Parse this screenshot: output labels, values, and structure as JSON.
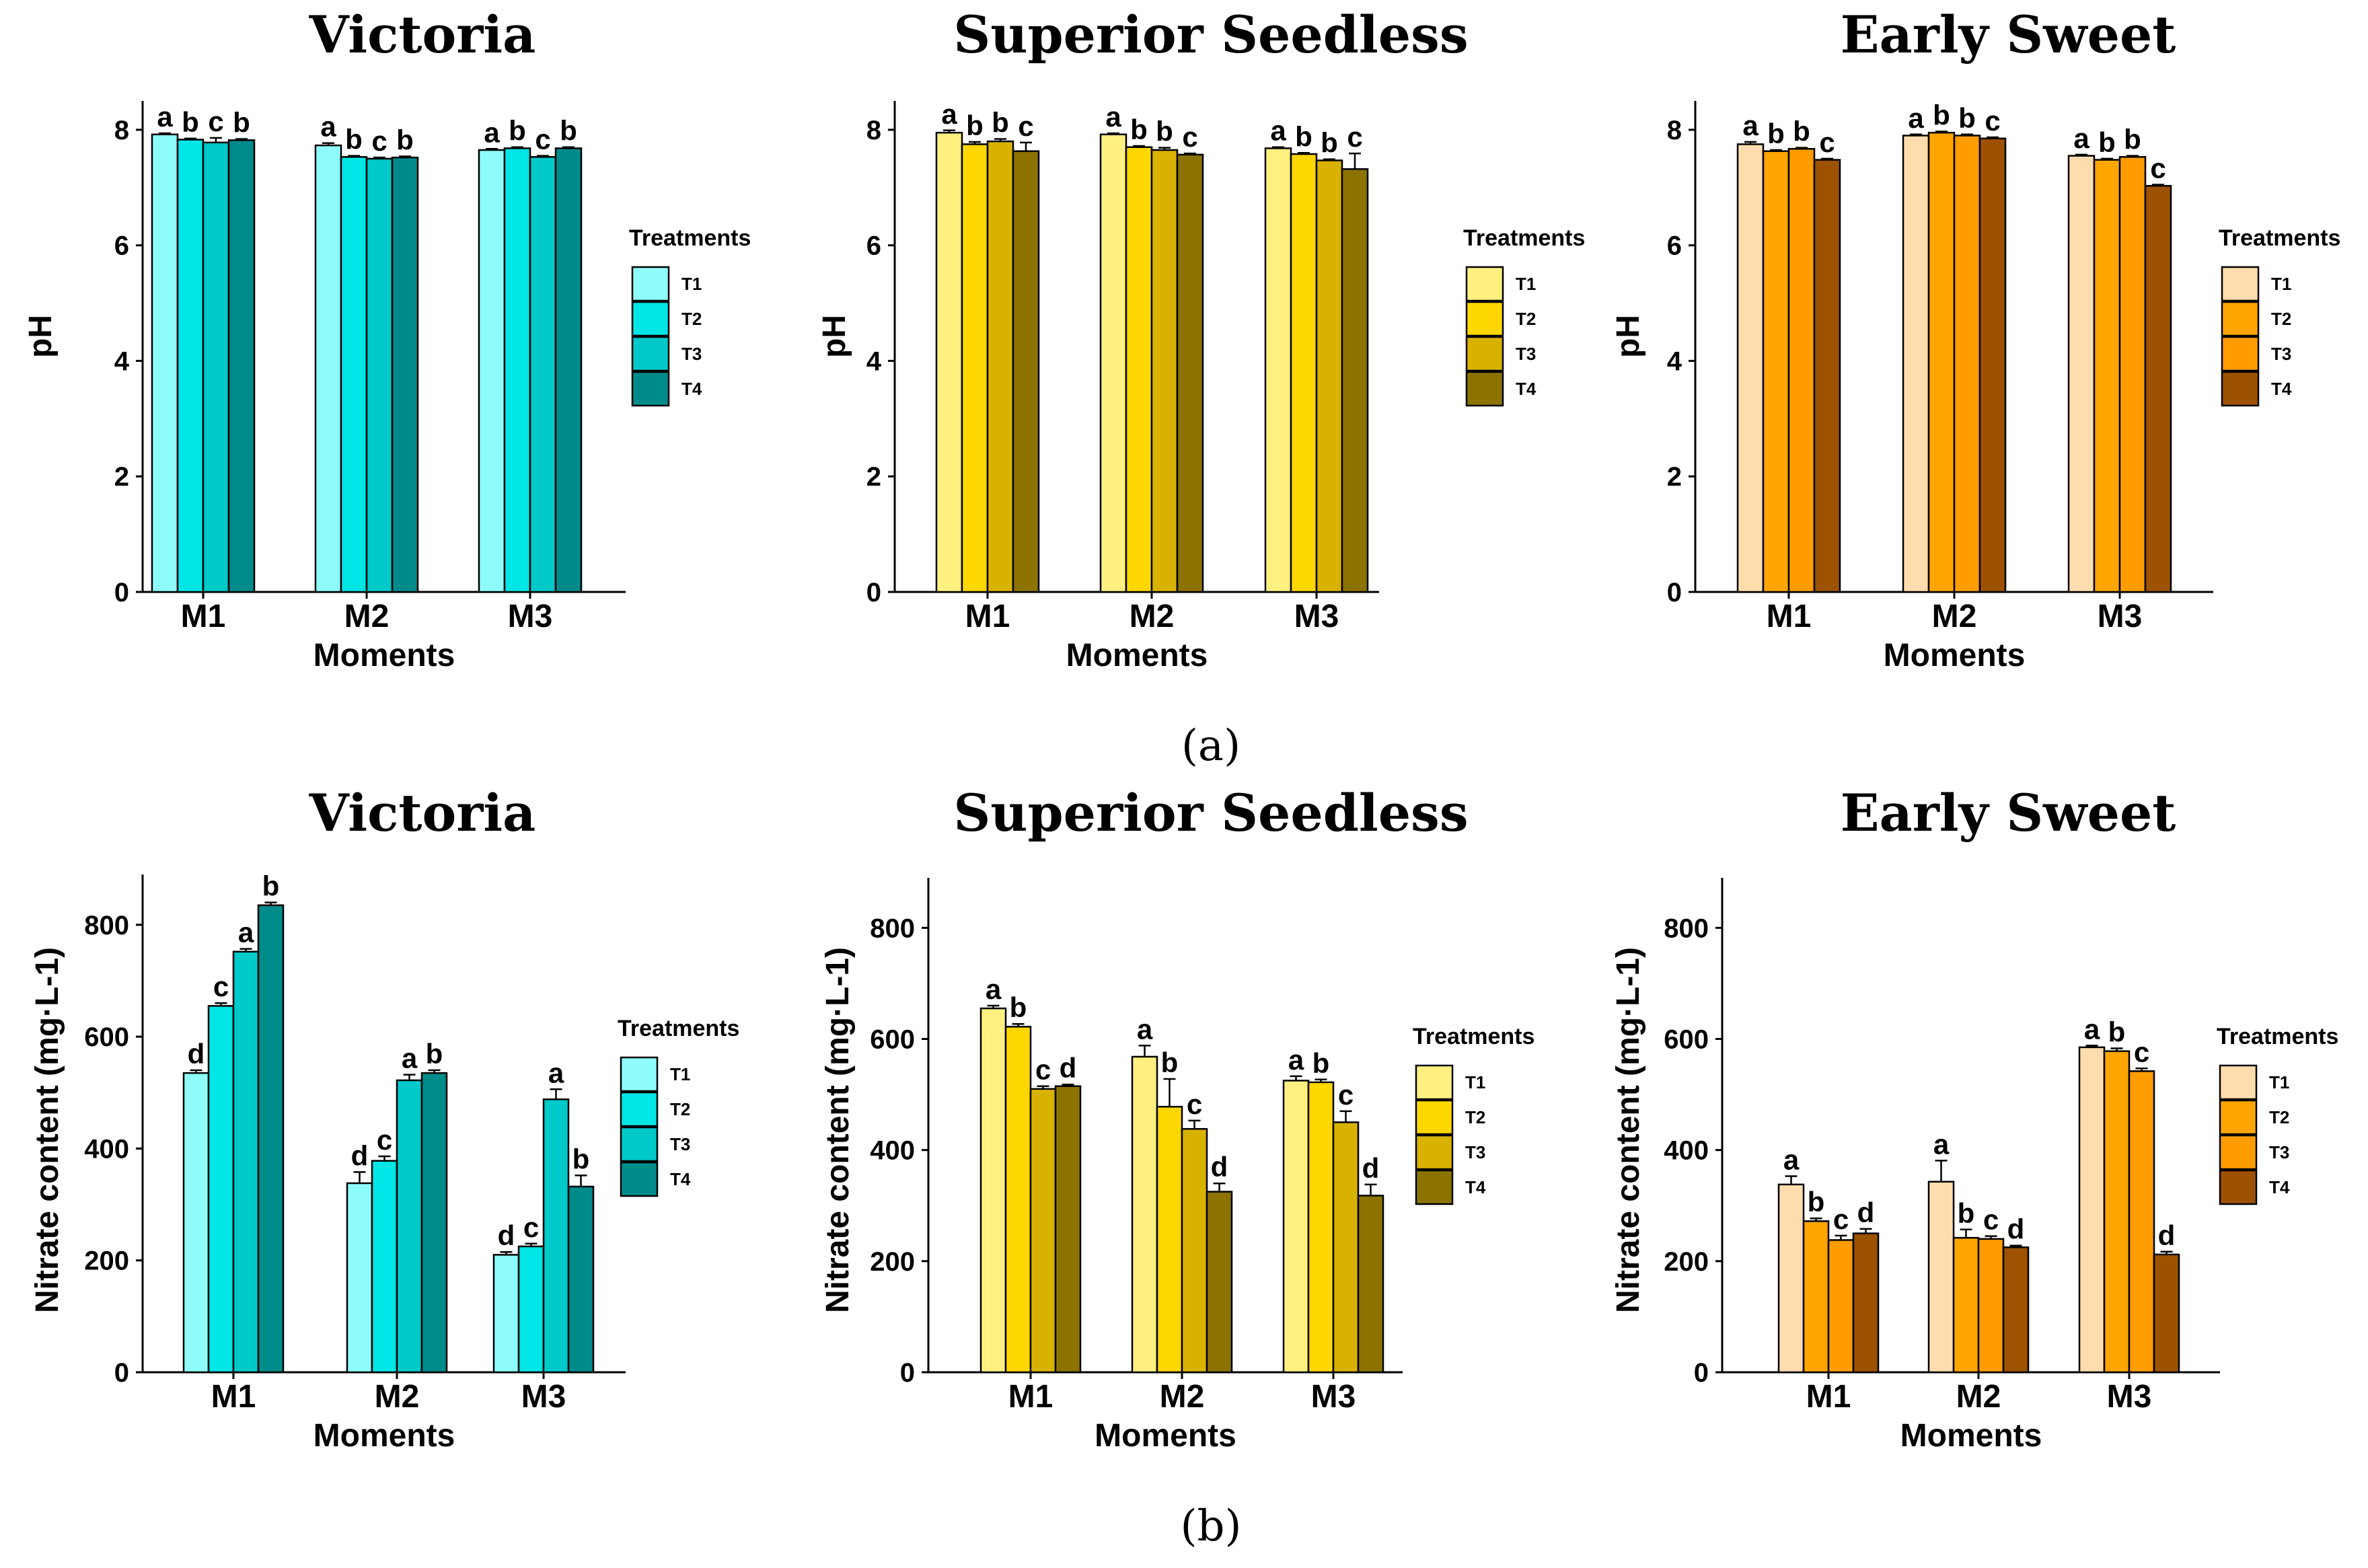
{
  "figure": {
    "caption_a": "(a)",
    "caption_b": "(b)"
  },
  "chart_data": [
    {
      "id": "ph-victoria",
      "row": "a",
      "type": "bar",
      "title": "Victoria",
      "xlabel": "Moments",
      "ylabel": "pH",
      "categories": [
        "M1",
        "M2",
        "M3"
      ],
      "ylim": [
        0,
        8.5
      ],
      "yticks": [
        0,
        2,
        4,
        6,
        8
      ],
      "legend_title": "Treatments",
      "colors": [
        "#8ffcfc",
        "#00e5e5",
        "#00c9c9",
        "#008b8b"
      ],
      "series": [
        {
          "name": "T1",
          "values": [
            7.92,
            7.73,
            7.65
          ],
          "errors": [
            0.02,
            0.04,
            0.02
          ],
          "letters": [
            "a",
            "a",
            "a"
          ]
        },
        {
          "name": "T2",
          "values": [
            7.83,
            7.53,
            7.68
          ],
          "errors": [
            0.02,
            0.02,
            0.02
          ],
          "letters": [
            "b",
            "b",
            "b"
          ]
        },
        {
          "name": "T3",
          "values": [
            7.78,
            7.5,
            7.53
          ],
          "errors": [
            0.08,
            0.02,
            0.02
          ],
          "letters": [
            "c",
            "c",
            "c"
          ]
        },
        {
          "name": "T4",
          "values": [
            7.82,
            7.52,
            7.68
          ],
          "errors": [
            0.02,
            0.02,
            0.02
          ],
          "letters": [
            "b",
            "b",
            "b"
          ]
        }
      ]
    },
    {
      "id": "ph-superior",
      "row": "a",
      "type": "bar",
      "title": "Superior Seedless",
      "xlabel": "Moments",
      "ylabel": "pH",
      "categories": [
        "M1",
        "M2",
        "M3"
      ],
      "ylim": [
        0,
        8.5
      ],
      "yticks": [
        0,
        2,
        4,
        6,
        8
      ],
      "legend_title": "Treatments",
      "colors": [
        "#fff080",
        "#ffd700",
        "#d9b200",
        "#8c7300"
      ],
      "series": [
        {
          "name": "T1",
          "values": [
            7.95,
            7.92,
            7.68
          ],
          "errors": [
            0.04,
            0.02,
            0.02
          ],
          "letters": [
            "a",
            "a",
            "a"
          ]
        },
        {
          "name": "T2",
          "values": [
            7.75,
            7.7,
            7.58
          ],
          "errors": [
            0.04,
            0.02,
            0.02
          ],
          "letters": [
            "b",
            "b",
            "b"
          ]
        },
        {
          "name": "T3",
          "values": [
            7.8,
            7.65,
            7.47
          ],
          "errors": [
            0.04,
            0.04,
            0.02
          ],
          "letters": [
            "b",
            "b",
            "b"
          ]
        },
        {
          "name": "T4",
          "values": [
            7.63,
            7.57,
            7.32
          ],
          "errors": [
            0.15,
            0.02,
            0.27
          ],
          "letters": [
            "c",
            "c",
            "c"
          ]
        }
      ]
    },
    {
      "id": "ph-earlysweet",
      "row": "a",
      "type": "bar",
      "title": "Early Sweet",
      "xlabel": "Moments",
      "ylabel": "pH",
      "categories": [
        "M1",
        "M2",
        "M3"
      ],
      "ylim": [
        0,
        8.5
      ],
      "yticks": [
        0,
        2,
        4,
        6,
        8
      ],
      "legend_title": "Treatments",
      "colors": [
        "#ffdcae",
        "#ffa500",
        "#ff9c00",
        "#9c5200"
      ],
      "series": [
        {
          "name": "T1",
          "values": [
            7.75,
            7.9,
            7.55
          ],
          "errors": [
            0.04,
            0.02,
            0.02
          ],
          "letters": [
            "a",
            "a",
            "a"
          ]
        },
        {
          "name": "T2",
          "values": [
            7.63,
            7.95,
            7.48
          ],
          "errors": [
            0.02,
            0.02,
            0.02
          ],
          "letters": [
            "b",
            "b",
            "b"
          ]
        },
        {
          "name": "T3",
          "values": [
            7.67,
            7.9,
            7.53
          ],
          "errors": [
            0.02,
            0.02,
            0.02
          ],
          "letters": [
            "b",
            "b",
            "b"
          ]
        },
        {
          "name": "T4",
          "values": [
            7.48,
            7.85,
            7.03
          ],
          "errors": [
            0.02,
            0.02,
            0.02
          ],
          "letters": [
            "c",
            "c",
            "c"
          ]
        }
      ]
    },
    {
      "id": "no3-victoria",
      "row": "b",
      "type": "bar",
      "title": "Victoria",
      "xlabel": "Moments",
      "ylabel": "Nitrate content (mg·L-1)",
      "categories": [
        "M1",
        "M2",
        "M3"
      ],
      "ylim": [
        0,
        890
      ],
      "yticks": [
        0,
        200,
        400,
        600,
        800
      ],
      "legend_title": "Treatments",
      "colors": [
        "#8ffcfc",
        "#00e5e5",
        "#00c9c9",
        "#008b8b"
      ],
      "series": [
        {
          "name": "T1",
          "values": [
            535,
            338,
            210
          ],
          "errors": [
            5,
            20,
            5
          ],
          "letters": [
            "d",
            "d",
            "d"
          ]
        },
        {
          "name": "T2",
          "values": [
            655,
            378,
            225
          ],
          "errors": [
            5,
            8,
            5
          ],
          "letters": [
            "c",
            "c",
            "c"
          ]
        },
        {
          "name": "T3",
          "values": [
            752,
            522,
            488
          ],
          "errors": [
            5,
            10,
            18
          ],
          "letters": [
            "a",
            "a",
            "a"
          ]
        },
        {
          "name": "T4",
          "values": [
            835,
            535,
            332
          ],
          "errors": [
            5,
            5,
            20
          ],
          "letters": [
            "b",
            "b",
            "b"
          ]
        }
      ]
    },
    {
      "id": "no3-superior",
      "row": "b",
      "type": "bar",
      "title": "Superior Seedless",
      "xlabel": "Moments",
      "ylabel": "Nitrate content (mg·L-1)",
      "categories": [
        "M1",
        "M2",
        "M3"
      ],
      "ylim": [
        0,
        890
      ],
      "yticks": [
        0,
        200,
        400,
        600,
        800
      ],
      "legend_title": "Treatments",
      "colors": [
        "#fff080",
        "#ffd700",
        "#d9b200",
        "#8c7300"
      ],
      "series": [
        {
          "name": "T1",
          "values": [
            655,
            568,
            525
          ],
          "errors": [
            5,
            20,
            8
          ],
          "letters": [
            "a",
            "a",
            "a"
          ]
        },
        {
          "name": "T2",
          "values": [
            622,
            478,
            522
          ],
          "errors": [
            5,
            50,
            5
          ],
          "letters": [
            "b",
            "b",
            "b"
          ]
        },
        {
          "name": "T3",
          "values": [
            510,
            438,
            450
          ],
          "errors": [
            5,
            15,
            20
          ],
          "letters": [
            "c",
            "c",
            "c"
          ]
        },
        {
          "name": "T4",
          "values": [
            515,
            325,
            318
          ],
          "errors": [
            3,
            15,
            20
          ],
          "letters": [
            "d",
            "d",
            "d"
          ]
        }
      ]
    },
    {
      "id": "no3-earlysweet",
      "row": "b",
      "type": "bar",
      "title": "Early Sweet",
      "xlabel": "Moments",
      "ylabel": "Nitrate content (mg·L-1)",
      "categories": [
        "M1",
        "M2",
        "M3"
      ],
      "ylim": [
        0,
        890
      ],
      "yticks": [
        0,
        200,
        400,
        600,
        800
      ],
      "legend_title": "Treatments",
      "colors": [
        "#ffdcae",
        "#ffa500",
        "#ff9c00",
        "#9c5200"
      ],
      "series": [
        {
          "name": "T1",
          "values": [
            338,
            343,
            585
          ],
          "errors": [
            15,
            38,
            3
          ],
          "letters": [
            "a",
            "a",
            "a"
          ]
        },
        {
          "name": "T2",
          "values": [
            272,
            242,
            578
          ],
          "errors": [
            5,
            15,
            5
          ],
          "letters": [
            "b",
            "b",
            "b"
          ]
        },
        {
          "name": "T3",
          "values": [
            238,
            240,
            542
          ],
          "errors": [
            8,
            5,
            5
          ],
          "letters": [
            "c",
            "c",
            "c"
          ]
        },
        {
          "name": "T4",
          "values": [
            250,
            225,
            212
          ],
          "errors": [
            8,
            3,
            5
          ],
          "letters": [
            "d",
            "d",
            "d"
          ]
        }
      ]
    }
  ]
}
